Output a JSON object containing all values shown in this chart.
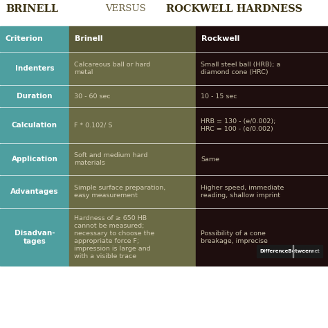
{
  "title_left": "BRINELL",
  "title_middle": "VERSUS",
  "title_right": "ROCKWELL HARDNESS",
  "bg_color": "#ffffff",
  "col1_color": "#4e9fa0",
  "col2_color": "#6b6b45",
  "col3_color": "#1e0e0e",
  "header_col1_color": "#4e9fa0",
  "header_col2_color": "#5a5a38",
  "header_col3_color": "#1e0e0e",
  "gap_color": "#ffffff",
  "rows": [
    {
      "criterion": "Indenters",
      "brinell": "Calcareous ball or hard\nmetal",
      "rockwell": "Small steel ball (HRB); a\ndiamond cone (HRC)"
    },
    {
      "criterion": "Duration",
      "brinell": "30 - 60 sec",
      "rockwell": "10 - 15 sec"
    },
    {
      "criterion": "Calculation",
      "brinell": "F * 0.102/ S",
      "rockwell": "HRB = 130 - (e/0.002);\nHRC = 100 - (e/0.002)"
    },
    {
      "criterion": "Application",
      "brinell": "Soft and medium hard\nmaterials",
      "rockwell": "Same"
    },
    {
      "criterion": "Advantages",
      "brinell": "Simple surface preparation,\neasy measurement",
      "rockwell": "Higher speed, immediate\nreading, shallow imprint"
    },
    {
      "criterion": "Disadvan-\ntages",
      "brinell": "Hardness of ≥ 650 HB\ncannot be measured;\nnecessary to choose the\nappropriate force F;\nimpression is large and\nwith a visible trace",
      "rockwell": "Possibility of a cone\nbreakage, imprecise"
    }
  ],
  "watermark_text": "DifferenceBetween",
  "watermark_suffix": ".net",
  "title_color": "#3a3010",
  "header_text_color": "#ffffff",
  "body_text_light": "#d8d0b8",
  "body_text_dark": "#c8c0a8"
}
